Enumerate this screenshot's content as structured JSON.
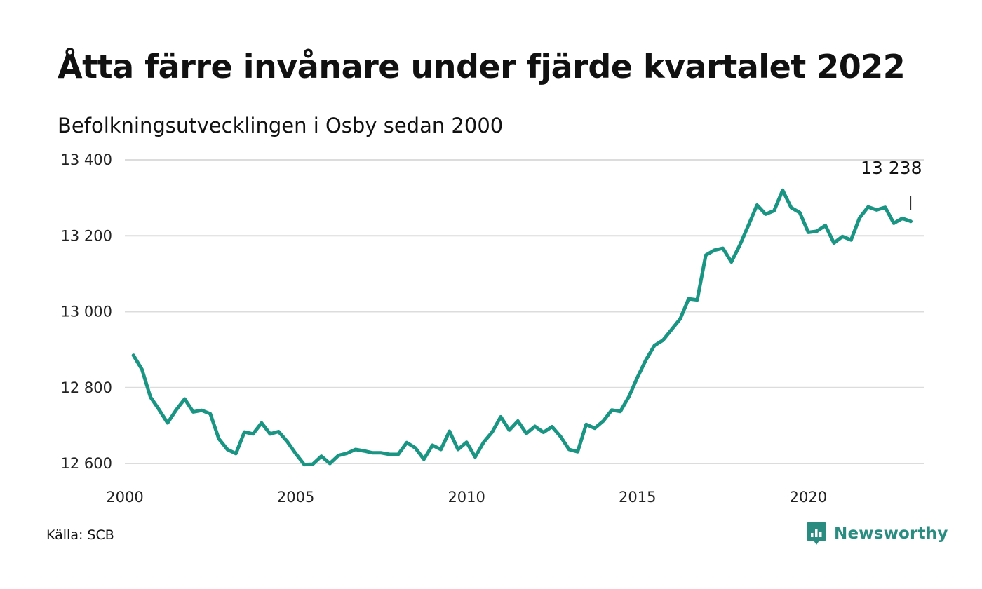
{
  "title": "Åtta färre invånare under fjärde kvartalet 2022",
  "subtitle": "Befolkningsutvecklingen i Osby sedan 2000",
  "source": "Källa: SCB",
  "brand": "Newsworthy",
  "brand_icon": "newsworthy-logo-icon",
  "colors": {
    "line": "#1a9483",
    "grid": "#dcdcdc",
    "brand": "#2a8c80"
  },
  "chart_data": {
    "type": "line",
    "title": "",
    "xlabel": "",
    "ylabel": "",
    "xlim": [
      2000,
      2023.4
    ],
    "ylim": [
      12600,
      13400
    ],
    "grid": true,
    "y_ticks": [
      12600,
      12800,
      13000,
      13200,
      13400
    ],
    "y_tick_labels": [
      "12 600",
      "12 800",
      "13 000",
      "13 200",
      "13 400"
    ],
    "x_ticks": [
      2000,
      2005,
      2010,
      2015,
      2020
    ],
    "x_tick_labels": [
      "2000",
      "2005",
      "2010",
      "2015",
      "2020"
    ],
    "end_label": "13 238",
    "series": [
      {
        "name": "",
        "x": [
          2000.25,
          2000.5,
          2000.75,
          2001.0,
          2001.25,
          2001.5,
          2001.75,
          2002.0,
          2002.25,
          2002.5,
          2002.75,
          2003.0,
          2003.25,
          2003.5,
          2003.75,
          2004.0,
          2004.25,
          2004.5,
          2004.75,
          2005.0,
          2005.25,
          2005.5,
          2005.75,
          2006.0,
          2006.25,
          2006.5,
          2006.75,
          2007.0,
          2007.25,
          2007.5,
          2007.75,
          2008.0,
          2008.25,
          2008.5,
          2008.75,
          2009.0,
          2009.25,
          2009.5,
          2009.75,
          2010.0,
          2010.25,
          2010.5,
          2010.75,
          2011.0,
          2011.25,
          2011.5,
          2011.75,
          2012.0,
          2012.25,
          2012.5,
          2012.75,
          2013.0,
          2013.25,
          2013.5,
          2013.75,
          2014.0,
          2014.25,
          2014.5,
          2014.75,
          2015.0,
          2015.25,
          2015.5,
          2015.75,
          2016.0,
          2016.25,
          2016.5,
          2016.75,
          2017.0,
          2017.25,
          2017.5,
          2017.75,
          2018.0,
          2018.25,
          2018.5,
          2018.75,
          2019.0,
          2019.25,
          2019.5,
          2019.75,
          2020.0,
          2020.25,
          2020.5,
          2020.75,
          2021.0,
          2021.25,
          2021.5,
          2021.75,
          2022.0,
          2022.25,
          2022.5,
          2022.75,
          2023.0
        ],
        "values": [
          12885,
          12848,
          12775,
          12742,
          12707,
          12741,
          12770,
          12736,
          12740,
          12731,
          12665,
          12637,
          12626,
          12683,
          12678,
          12707,
          12678,
          12684,
          12658,
          12626,
          12597,
          12598,
          12619,
          12600,
          12621,
          12627,
          12637,
          12633,
          12628,
          12628,
          12624,
          12624,
          12655,
          12641,
          12611,
          12648,
          12637,
          12685,
          12637,
          12656,
          12617,
          12656,
          12683,
          12723,
          12688,
          12712,
          12679,
          12698,
          12682,
          12697,
          12671,
          12637,
          12631,
          12703,
          12693,
          12712,
          12741,
          12737,
          12776,
          12827,
          12873,
          12911,
          12925,
          12953,
          12981,
          13034,
          13031,
          13149,
          13162,
          13167,
          13131,
          13176,
          13228,
          13281,
          13257,
          13266,
          13320,
          13274,
          13261,
          13209,
          13212,
          13227,
          13181,
          13198,
          13189,
          13247,
          13276,
          13268,
          13275,
          13233,
          13246,
          13238
        ]
      }
    ]
  }
}
